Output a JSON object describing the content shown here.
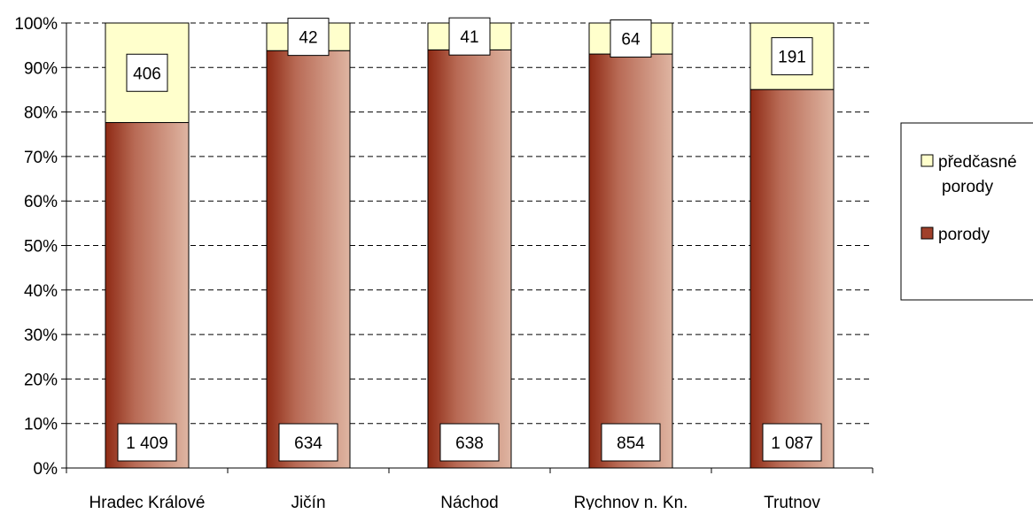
{
  "chart_data": {
    "type": "bar",
    "stacked": "percent",
    "categories": [
      "Hradec Králové",
      "Jičín",
      "Náchod",
      "Rychnov n. Kn.",
      "Trutnov"
    ],
    "series": [
      {
        "name": "porody",
        "values": [
          1409,
          634,
          638,
          854,
          1087
        ],
        "labels": [
          "1 409",
          "634",
          "638",
          "854",
          "1 087"
        ],
        "color": "#a0402a"
      },
      {
        "name": "předčasné porody",
        "values": [
          406,
          42,
          41,
          64,
          191
        ],
        "labels": [
          "406",
          "42",
          "41",
          "64",
          "191"
        ],
        "color": "#ffffcc"
      }
    ],
    "yticks": [
      "0%",
      "10%",
      "20%",
      "30%",
      "40%",
      "50%",
      "60%",
      "70%",
      "80%",
      "90%",
      "100%"
    ],
    "ylim": [
      0,
      100
    ],
    "grid": true,
    "legend_position": "right"
  }
}
